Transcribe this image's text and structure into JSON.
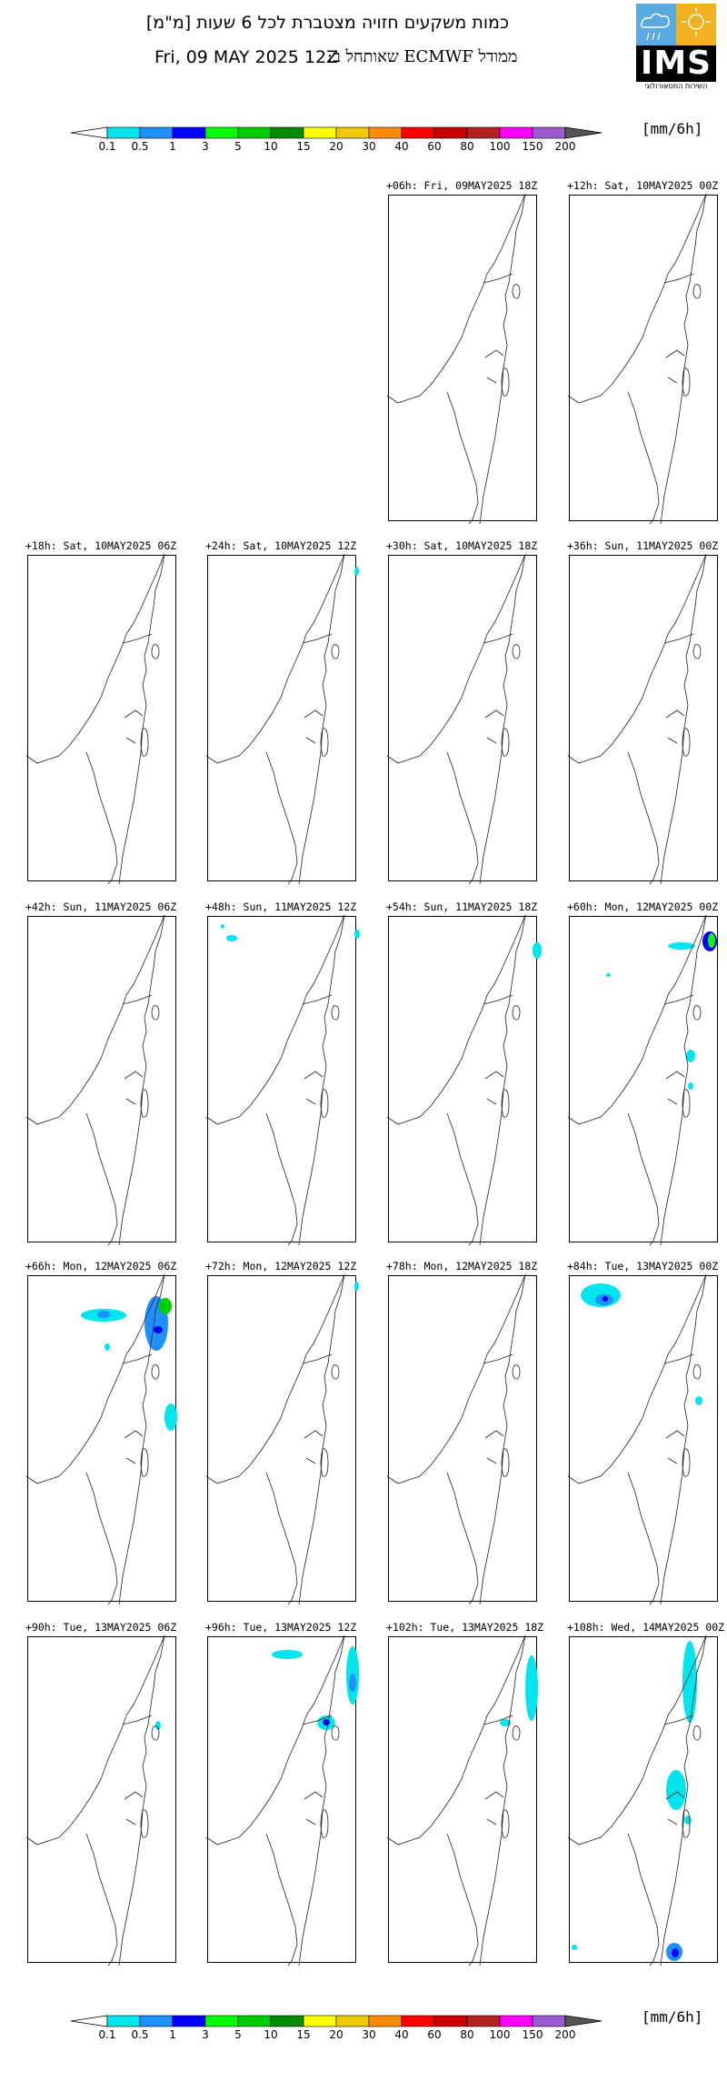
{
  "header": {
    "title": "כמות משקעים חזויה מצטברת לכל 6 שעות [מ\"מ]",
    "date": "Fri, 09 MAY 2025 12Z",
    "model": "ממודל ECMWF שאותחל ב:",
    "logo_text": "IMS",
    "logo_subtitle": "השירות המטאורולוגי"
  },
  "colorbar": {
    "unit": "[mm/6h]",
    "ticks": [
      "0.1",
      "0.5",
      "1",
      "3",
      "5",
      "10",
      "15",
      "20",
      "30",
      "40",
      "60",
      "80",
      "100",
      "150",
      "200"
    ],
    "colors": [
      "#00e5ee",
      "#1e90ff",
      "#0000ff",
      "#00ff00",
      "#00cd00",
      "#008b00",
      "#ffff00",
      "#eec900",
      "#ff8c00",
      "#ff0000",
      "#cd0000",
      "#b22222",
      "#ff00ff",
      "#9b59d0"
    ],
    "under_color": "#ffffff",
    "over_color": "#555555"
  },
  "panels": [
    {
      "label": "+06h: Fri, 09MAY2025 18Z",
      "precip": []
    },
    {
      "label": "+12h: Sat, 10MAY2025 00Z",
      "precip": []
    },
    {
      "label": "+18h: Sat, 10MAY2025 06Z",
      "precip": []
    },
    {
      "label": "+24h: Sat, 10MAY2025 12Z",
      "precip": [
        {
          "x": 161,
          "y": 12,
          "w": 5,
          "h": 10,
          "level": "0.1-0.5"
        }
      ]
    },
    {
      "label": "+30h: Sat, 10MAY2025 18Z",
      "precip": []
    },
    {
      "label": "+36h: Sun, 11MAY2025 00Z",
      "precip": []
    },
    {
      "label": "+42h: Sun, 11MAY2025 06Z",
      "precip": []
    },
    {
      "label": "+48h: Sun, 11MAY2025 12Z",
      "precip": [
        {
          "x": 20,
          "y": 20,
          "w": 12,
          "h": 7,
          "level": "0.1-0.5"
        },
        {
          "x": 14,
          "y": 8,
          "w": 4,
          "h": 5,
          "level": "0.1-0.5"
        },
        {
          "x": 161,
          "y": 14,
          "w": 6,
          "h": 10,
          "level": "0.1-0.5"
        }
      ]
    },
    {
      "label": "+54h: Sun, 11MAY2025 18Z",
      "precip": [
        {
          "x": 158,
          "y": 28,
          "w": 10,
          "h": 18,
          "level": "0.1-0.5"
        }
      ]
    },
    {
      "label": "+60h: Mon, 12MAY2025 00Z",
      "precip": [
        {
          "x": 108,
          "y": 28,
          "w": 30,
          "h": 8,
          "level": "0.1-0.5"
        },
        {
          "x": 146,
          "y": 16,
          "w": 16,
          "h": 22,
          "level": "1-3"
        },
        {
          "x": 152,
          "y": 18,
          "w": 8,
          "h": 16,
          "level": "3-5"
        },
        {
          "x": 40,
          "y": 62,
          "w": 5,
          "h": 4,
          "level": "0.1-0.5"
        },
        {
          "x": 128,
          "y": 146,
          "w": 10,
          "h": 14,
          "level": "0.1-0.5"
        },
        {
          "x": 130,
          "y": 182,
          "w": 6,
          "h": 8,
          "level": "0.1-0.5"
        }
      ]
    },
    {
      "label": "+66h: Mon, 12MAY2025 06Z",
      "precip": [
        {
          "x": 58,
          "y": 36,
          "w": 50,
          "h": 14,
          "level": "0.1-0.5"
        },
        {
          "x": 76,
          "y": 38,
          "w": 14,
          "h": 8,
          "level": "0.5-1"
        },
        {
          "x": 128,
          "y": 22,
          "w": 26,
          "h": 60,
          "level": "0.5-1"
        },
        {
          "x": 144,
          "y": 24,
          "w": 14,
          "h": 18,
          "level": "5-10"
        },
        {
          "x": 138,
          "y": 55,
          "w": 10,
          "h": 8,
          "level": "1-3"
        },
        {
          "x": 84,
          "y": 74,
          "w": 6,
          "h": 8,
          "level": "0.1-0.5"
        },
        {
          "x": 150,
          "y": 140,
          "w": 14,
          "h": 30,
          "level": "0.1-0.5"
        }
      ]
    },
    {
      "label": "+72h: Mon, 12MAY2025 12Z",
      "precip": [
        {
          "x": 161,
          "y": 6,
          "w": 5,
          "h": 10,
          "level": "0.1-0.5"
        }
      ]
    },
    {
      "label": "+78h: Mon, 12MAY2025 18Z",
      "precip": []
    },
    {
      "label": "+84h: Tue, 13MAY2025 00Z",
      "precip": [
        {
          "x": 12,
          "y": 8,
          "w": 44,
          "h": 26,
          "level": "0.1-0.5"
        },
        {
          "x": 28,
          "y": 20,
          "w": 20,
          "h": 12,
          "level": "0.5-1"
        },
        {
          "x": 36,
          "y": 22,
          "w": 6,
          "h": 6,
          "level": "1-3"
        },
        {
          "x": 138,
          "y": 132,
          "w": 8,
          "h": 10,
          "level": "0.1-0.5"
        }
      ]
    },
    {
      "label": "+90h: Tue, 13MAY2025 06Z",
      "precip": [
        {
          "x": 140,
          "y": 92,
          "w": 6,
          "h": 10,
          "level": "0.1-0.5"
        }
      ]
    },
    {
      "label": "+96h: Tue, 13MAY2025 12Z",
      "precip": [
        {
          "x": 70,
          "y": 14,
          "w": 34,
          "h": 10,
          "level": "0.1-0.5"
        },
        {
          "x": 152,
          "y": 10,
          "w": 14,
          "h": 64,
          "level": "0.1-0.5"
        },
        {
          "x": 155,
          "y": 40,
          "w": 8,
          "h": 20,
          "level": "0.5-1"
        },
        {
          "x": 120,
          "y": 86,
          "w": 20,
          "h": 16,
          "level": "0.1-0.5"
        },
        {
          "x": 126,
          "y": 90,
          "w": 8,
          "h": 7,
          "level": "1-3"
        }
      ]
    },
    {
      "label": "+102h: Tue, 13MAY2025 18Z",
      "precip": [
        {
          "x": 150,
          "y": 20,
          "w": 14,
          "h": 72,
          "level": "0.1-0.5"
        },
        {
          "x": 122,
          "y": 90,
          "w": 12,
          "h": 8,
          "level": "0.1-0.5"
        }
      ]
    },
    {
      "label": "+108h: Wed, 14MAY2025 00Z",
      "precip": [
        {
          "x": 124,
          "y": 4,
          "w": 16,
          "h": 90,
          "level": "0.1-0.5"
        },
        {
          "x": 106,
          "y": 146,
          "w": 22,
          "h": 44,
          "level": "0.1-0.5"
        },
        {
          "x": 126,
          "y": 196,
          "w": 8,
          "h": 10,
          "level": "0.1-0.5"
        },
        {
          "x": 106,
          "y": 336,
          "w": 18,
          "h": 20,
          "level": "0.5-1"
        },
        {
          "x": 112,
          "y": 342,
          "w": 8,
          "h": 10,
          "level": "1-3"
        },
        {
          "x": 2,
          "y": 338,
          "w": 6,
          "h": 6,
          "level": "0.1-0.5"
        }
      ]
    }
  ]
}
